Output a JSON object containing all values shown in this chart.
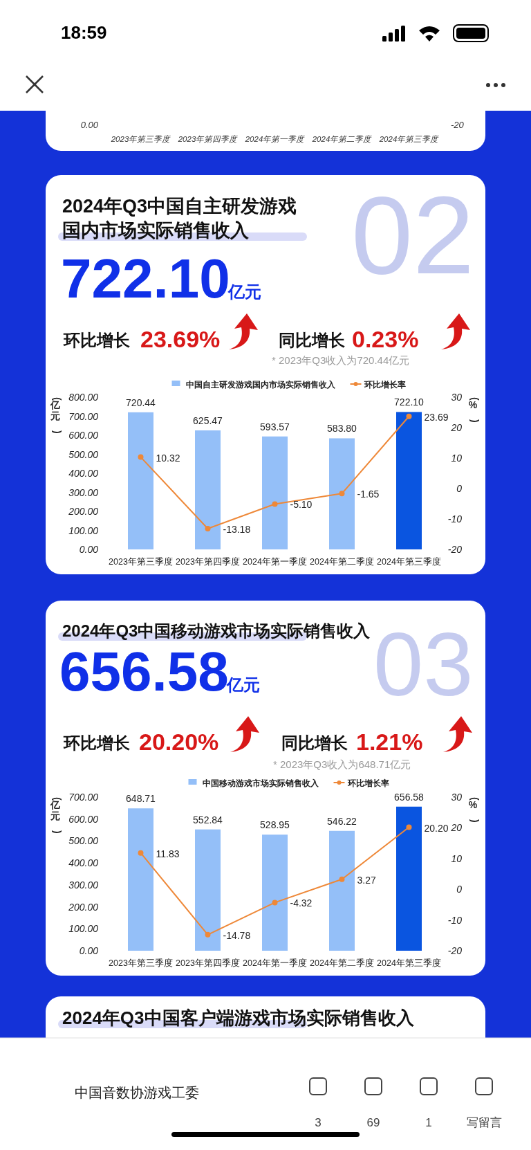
{
  "chart_data": [
    {
      "type": "other",
      "categories": [
        "2023年第三季度",
        "2023年第四季度",
        "2024年第一季度",
        "2024年第二季度",
        "2024年第三季度"
      ],
      "annotations": [
        "0.00",
        "-20"
      ]
    },
    {
      "type": "bar",
      "title": "2024年Q3中国自主研发游戏国内市场实际销售收入",
      "ylabel": "(亿元)",
      "y2label": "(%)",
      "legend": "top",
      "marker": "circle",
      "categories": [
        "2023年第三季度",
        "2023年第四季度",
        "2024年第一季度",
        "2024年第二季度",
        "2024年第三季度"
      ],
      "ylim": [
        0,
        800
      ],
      "yticks": [
        {
          "value": 0,
          "label": "0.00"
        },
        {
          "value": 100,
          "label": "100.00"
        },
        {
          "value": 200,
          "label": "200.00"
        },
        {
          "value": 300,
          "label": "300.00"
        },
        {
          "value": 400,
          "label": "400.00"
        },
        {
          "value": 500,
          "label": "500.00"
        },
        {
          "value": 600,
          "label": "600.00"
        },
        {
          "value": 700,
          "label": "700.00"
        },
        {
          "value": 800,
          "label": "800.00"
        }
      ],
      "y2lim": [
        -20,
        30
      ],
      "y2ticks": [
        -20,
        -10,
        0,
        10,
        20,
        30
      ],
      "series": [
        {
          "name": "中国自主研发游戏国内市场实际销售收入",
          "type": "bar",
          "colors": [
            "#94bff8",
            "#94bff8",
            "#94bff8",
            "#94bff8",
            "#0a55e0"
          ],
          "values": [
            720.44,
            625.47,
            593.57,
            583.8,
            722.1
          ],
          "value_labels": [
            "720.44",
            "625.47",
            "593.57",
            "583.80",
            "722.10"
          ]
        },
        {
          "name": "环比增长率",
          "type": "line",
          "axis": "y2",
          "color": "#ee8838",
          "values": [
            10.32,
            -13.18,
            -5.1,
            -1.65,
            23.69
          ],
          "value_labels": [
            "10.32",
            "-13.18",
            "-5.10",
            "-1.65",
            "23.69"
          ]
        }
      ],
      "annotations": [
        "02",
        "722.10",
        "亿元",
        "环比增长",
        "23.69%",
        "同比增长",
        "0.23%",
        "* 2023年Q3收入为720.44亿元"
      ]
    },
    {
      "type": "bar",
      "title": "2024年Q3中国移动游戏市场实际销售收入",
      "ylabel": "(亿元)",
      "y2label": "(%)",
      "legend": "top",
      "marker": "circle",
      "categories": [
        "2023年第三季度",
        "2023年第四季度",
        "2024年第一季度",
        "2024年第二季度",
        "2024年第三季度"
      ],
      "ylim": [
        0,
        700
      ],
      "yticks": [
        {
          "value": 0,
          "label": "0.00"
        },
        {
          "value": 100,
          "label": "100.00"
        },
        {
          "value": 200,
          "label": "200.00"
        },
        {
          "value": 300,
          "label": "300.00"
        },
        {
          "value": 400,
          "label": "400.00"
        },
        {
          "value": 500,
          "label": "500.00"
        },
        {
          "value": 600,
          "label": "600.00"
        },
        {
          "value": 700,
          "label": "700.00"
        }
      ],
      "y2lim": [
        -20,
        30
      ],
      "y2ticks": [
        -20,
        -10,
        0,
        10,
        20,
        30
      ],
      "series": [
        {
          "name": "中国移动游戏市场实际销售收入",
          "type": "bar",
          "colors": [
            "#94bff8",
            "#94bff8",
            "#94bff8",
            "#94bff8",
            "#0a55e0"
          ],
          "values": [
            648.71,
            552.84,
            528.95,
            546.22,
            656.58
          ],
          "value_labels": [
            "648.71",
            "552.84",
            "528.95",
            "546.22",
            "656.58"
          ]
        },
        {
          "name": "环比增长率",
          "type": "line",
          "axis": "y2",
          "color": "#ee8838",
          "values": [
            11.83,
            -14.78,
            -4.32,
            3.27,
            20.2
          ],
          "value_labels": [
            "11.83",
            "-14.78",
            "-4.32",
            "3.27",
            "20.20"
          ]
        }
      ],
      "annotations": [
        "03",
        "656.58",
        "亿元",
        "环比增长",
        "20.20%",
        "同比增长",
        "1.21%",
        "* 2023年Q3收入为648.71亿元"
      ]
    },
    {
      "type": "other",
      "title": "2024年Q3中国客户端游戏市场实际销售收入"
    },
    {
      "type": "other",
      "annotations": [
        "18:59",
        "中国音数协游戏工委",
        "3",
        "69",
        "1",
        "写留言"
      ]
    }
  ]
}
